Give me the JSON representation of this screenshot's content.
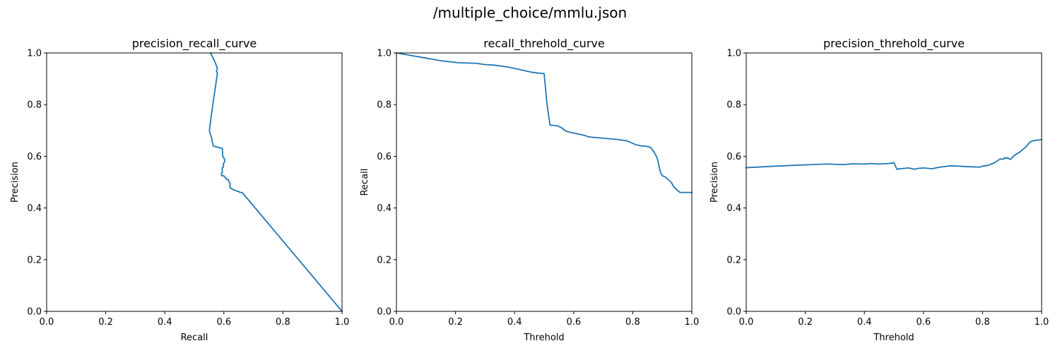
{
  "figure_title": "/multiple_choice/mmlu.json",
  "line_color": "#1f77b4",
  "chart_data": [
    {
      "type": "line",
      "title": "precision_recall_curve",
      "xlabel": "Recall",
      "ylabel": "Precision",
      "xlim": [
        0,
        1
      ],
      "ylim": [
        0,
        1
      ],
      "xticks": [
        "0.0",
        "0.2",
        "0.4",
        "0.6",
        "0.8",
        "1.0"
      ],
      "yticks": [
        "0.0",
        "0.2",
        "0.4",
        "0.6",
        "0.8",
        "1.0"
      ],
      "grid": false,
      "series": [
        {
          "x": [
            0.555,
            0.57,
            0.575,
            0.578,
            0.575,
            0.578,
            0.565,
            0.553,
            0.551,
            0.553,
            0.556,
            0.557,
            0.559,
            0.56,
            0.562,
            0.564,
            0.58,
            0.595,
            0.596,
            0.602,
            0.603,
            0.598,
            0.599,
            0.594,
            0.595,
            0.591,
            0.593,
            0.6,
            0.602,
            0.608,
            0.61,
            0.615,
            0.618,
            0.621,
            0.62,
            0.625,
            0.627,
            0.632,
            0.635,
            0.64,
            0.645,
            0.648,
            0.655,
            0.657,
            0.662,
            1.0
          ],
          "y": [
            1.0,
            0.965,
            0.95,
            0.94,
            0.93,
            0.92,
            0.82,
            0.72,
            0.7,
            0.69,
            0.68,
            0.675,
            0.67,
            0.66,
            0.65,
            0.64,
            0.635,
            0.63,
            0.6,
            0.59,
            0.58,
            0.57,
            0.56,
            0.555,
            0.54,
            0.53,
            0.525,
            0.525,
            0.52,
            0.515,
            0.51,
            0.51,
            0.5,
            0.495,
            0.48,
            0.475,
            0.475,
            0.47,
            0.47,
            0.467,
            0.465,
            0.465,
            0.46,
            0.46,
            0.46,
            0.0
          ]
        }
      ]
    },
    {
      "type": "line",
      "title": "recall_threhold_curve",
      "xlabel": "Threhold",
      "ylabel": "Recall",
      "xlim": [
        0,
        1
      ],
      "ylim": [
        0,
        1
      ],
      "xticks": [
        "0.0",
        "0.2",
        "0.4",
        "0.6",
        "0.8",
        "1.0"
      ],
      "yticks": [
        "0.0",
        "0.2",
        "0.4",
        "0.6",
        "0.8",
        "1.0"
      ],
      "grid": false,
      "series": [
        {
          "x": [
            0.0,
            0.05,
            0.1,
            0.15,
            0.21,
            0.27,
            0.3,
            0.33,
            0.35,
            0.38,
            0.4,
            0.42,
            0.44,
            0.46,
            0.48,
            0.5,
            0.51,
            0.52,
            0.53,
            0.545,
            0.56,
            0.57,
            0.58,
            0.6,
            0.62,
            0.64,
            0.65,
            0.7,
            0.75,
            0.78,
            0.8,
            0.81,
            0.83,
            0.84,
            0.86,
            0.87,
            0.88,
            0.885,
            0.89,
            0.895,
            0.9,
            0.91,
            0.92,
            0.93,
            0.94,
            0.95,
            0.96,
            1.0
          ],
          "y": [
            1.0,
            0.99,
            0.98,
            0.97,
            0.962,
            0.96,
            0.955,
            0.953,
            0.95,
            0.945,
            0.94,
            0.935,
            0.93,
            0.925,
            0.922,
            0.92,
            0.8,
            0.72,
            0.72,
            0.718,
            0.71,
            0.7,
            0.695,
            0.69,
            0.685,
            0.68,
            0.675,
            0.67,
            0.665,
            0.66,
            0.65,
            0.645,
            0.64,
            0.64,
            0.635,
            0.62,
            0.6,
            0.585,
            0.555,
            0.535,
            0.525,
            0.52,
            0.51,
            0.5,
            0.48,
            0.47,
            0.46,
            0.46
          ]
        }
      ]
    },
    {
      "type": "line",
      "title": "precision_threhold_curve",
      "xlabel": "Threhold",
      "ylabel": "Precision",
      "xlim": [
        0,
        1
      ],
      "ylim": [
        0,
        1
      ],
      "xticks": [
        "0.0",
        "0.2",
        "0.4",
        "0.6",
        "0.8",
        "1.0"
      ],
      "yticks": [
        "0.0",
        "0.2",
        "0.4",
        "0.6",
        "0.8",
        "1.0"
      ],
      "grid": false,
      "series": [
        {
          "x": [
            0.0,
            0.1,
            0.2,
            0.27,
            0.33,
            0.36,
            0.4,
            0.42,
            0.45,
            0.48,
            0.5,
            0.51,
            0.53,
            0.55,
            0.57,
            0.58,
            0.6,
            0.63,
            0.65,
            0.67,
            0.69,
            0.72,
            0.75,
            0.79,
            0.8,
            0.82,
            0.83,
            0.84,
            0.85,
            0.86,
            0.87,
            0.875,
            0.88,
            0.885,
            0.89,
            0.895,
            0.9,
            0.905,
            0.91,
            0.92,
            0.93,
            0.94,
            0.95,
            0.96,
            0.97,
            1.0
          ],
          "y": [
            0.556,
            0.562,
            0.567,
            0.57,
            0.568,
            0.571,
            0.57,
            0.572,
            0.57,
            0.572,
            0.575,
            0.55,
            0.553,
            0.555,
            0.55,
            0.553,
            0.555,
            0.552,
            0.557,
            0.56,
            0.563,
            0.562,
            0.56,
            0.558,
            0.562,
            0.565,
            0.57,
            0.575,
            0.582,
            0.59,
            0.588,
            0.595,
            0.592,
            0.595,
            0.59,
            0.588,
            0.595,
            0.6,
            0.605,
            0.612,
            0.62,
            0.63,
            0.64,
            0.655,
            0.66,
            0.665
          ]
        }
      ]
    }
  ]
}
